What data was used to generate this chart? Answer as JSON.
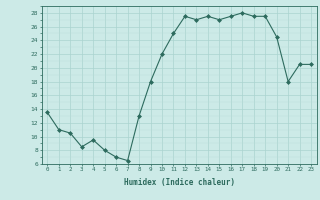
{
  "x": [
    0,
    1,
    2,
    3,
    4,
    5,
    6,
    7,
    8,
    9,
    10,
    11,
    12,
    13,
    14,
    15,
    16,
    17,
    18,
    19,
    20,
    21,
    22,
    23
  ],
  "y": [
    13.5,
    11,
    10.5,
    8.5,
    9.5,
    8,
    7,
    6.5,
    13,
    18,
    22,
    25,
    27.5,
    27,
    27.5,
    27,
    27.5,
    28,
    27.5,
    27.5,
    24.5,
    18,
    20.5,
    20.5
  ],
  "line_color": "#2d6b5e",
  "marker": "D",
  "marker_size": 2.0,
  "bg_color": "#cceae7",
  "grid_major_color": "#aad4d0",
  "grid_minor_color": "#bbdeda",
  "tick_color": "#2d6b5e",
  "label_color": "#2d6b5e",
  "xlabel": "Humidex (Indice chaleur)",
  "ylim": [
    6,
    29
  ],
  "yticks": [
    6,
    8,
    10,
    12,
    14,
    16,
    18,
    20,
    22,
    24,
    26,
    28
  ],
  "xticks": [
    0,
    1,
    2,
    3,
    4,
    5,
    6,
    7,
    8,
    9,
    10,
    11,
    12,
    13,
    14,
    15,
    16,
    17,
    18,
    19,
    20,
    21,
    22,
    23
  ],
  "xlim": [
    -0.5,
    23.5
  ]
}
